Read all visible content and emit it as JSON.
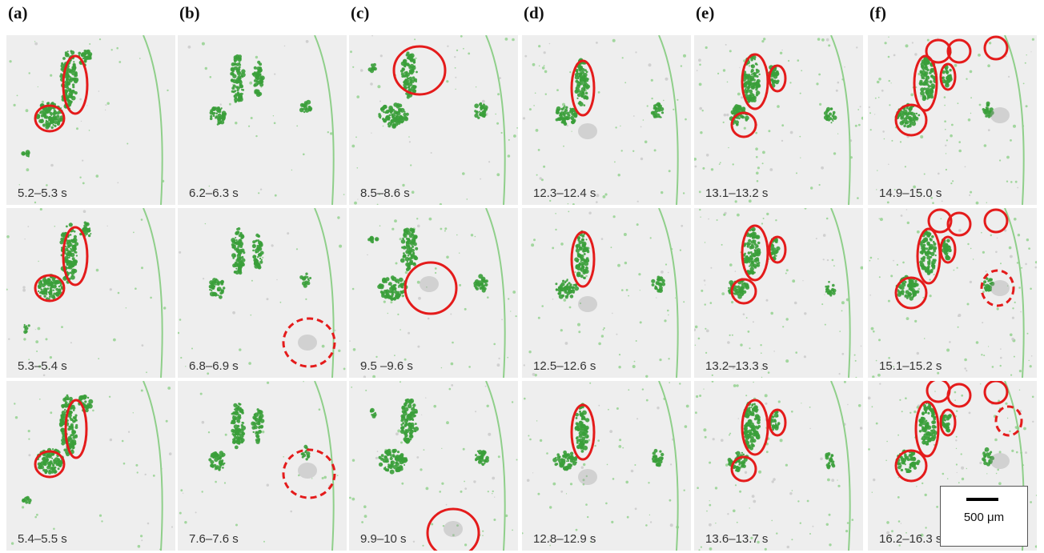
{
  "figure": {
    "columns": [
      {
        "letter": "(a)",
        "timestamps": [
          "5.2–5.3 s",
          "5.3–5.4 s",
          "5.4–5.5 s"
        ]
      },
      {
        "letter": "(b)",
        "timestamps": [
          "6.2–6.3 s",
          "6.8–6.9 s",
          "7.6–7.6 s"
        ]
      },
      {
        "letter": "(c)",
        "timestamps": [
          "8.5–8.6 s",
          "9.5 –9.6 s",
          "9.9–10 s"
        ]
      },
      {
        "letter": "(d)",
        "timestamps": [
          "12.3–12.4 s",
          "12.5–12.6 s",
          "12.8–12.9 s"
        ]
      },
      {
        "letter": "(e)",
        "timestamps": [
          "13.1–13.2 s",
          "13.2–13.3 s",
          "13.6–13.7 s"
        ]
      },
      {
        "letter": "(f)",
        "timestamps": [
          "14.9–15.0 s",
          "15.1–15.2 s",
          "16.2–16.3 s"
        ]
      }
    ],
    "scale_bar_label": "500 μm",
    "colors": {
      "background": "#eeeeee",
      "foliage": "#3a9e3a",
      "foliage_light": "#8fcf8a",
      "marker": "#e41b1b",
      "faint_blob": "#9a9a9a"
    }
  }
}
